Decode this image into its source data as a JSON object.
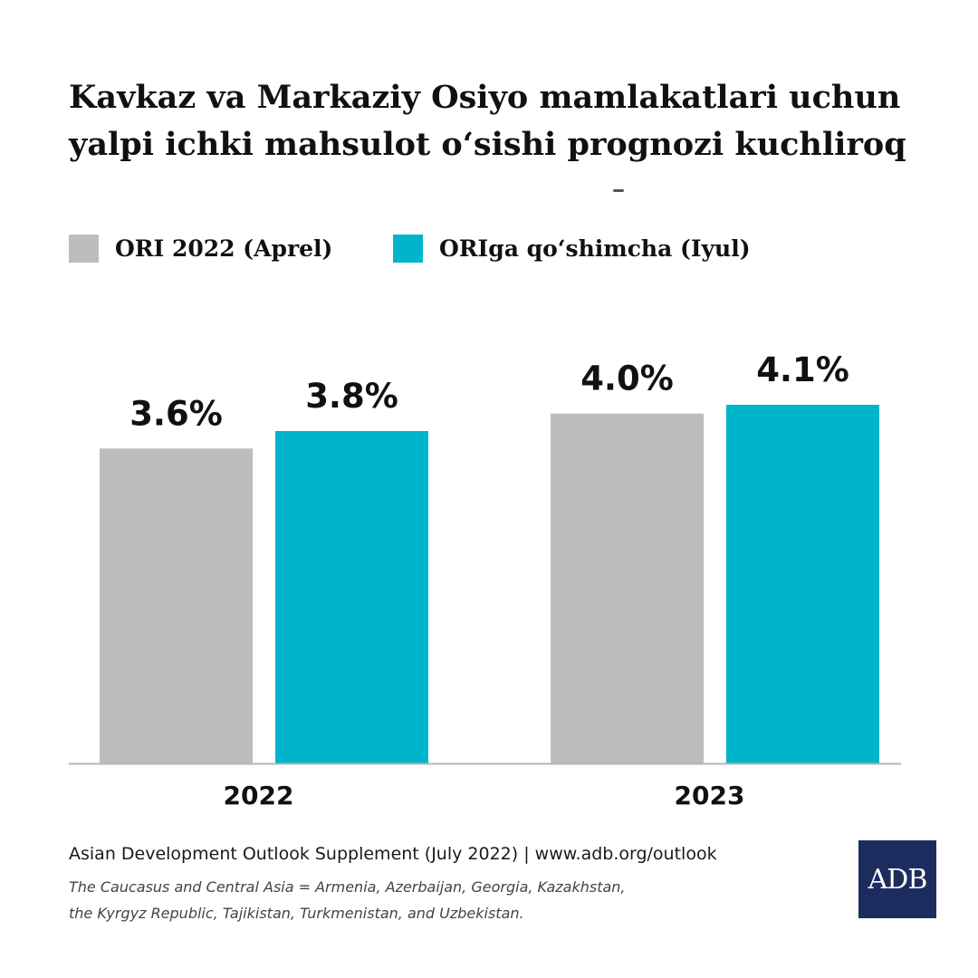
{
  "title_lines": [
    "Kavkaz va Markaziy Osiyo mamlakatlari uchun",
    "yalpi ichki mahsulot o‘sishi prognozi kuchliroq"
  ],
  "legend": [
    {
      "label": "ORI 2022 (Aprel)",
      "color": "#bcbdbf"
    },
    {
      "label": "ORIga qo‘shimcha (Iyul)",
      "color": "#00b5cb"
    }
  ],
  "chart_data": {
    "type": "bar",
    "title": "Kavkaz va Markaziy Osiyo mamlakatlari uchun yalpi ichki mahsulot o‘sishi prognozi kuchliroq",
    "categories": [
      "2022",
      "2023"
    ],
    "series": [
      {
        "name": "ORI 2022 (Aprel)",
        "values": [
          3.6,
          4.0
        ],
        "labels": [
          "3.6%",
          "4.0%"
        ],
        "color": "#bcbdbf"
      },
      {
        "name": "ORIga qo‘shimcha (Iyul)",
        "values": [
          3.8,
          4.1
        ],
        "labels": [
          "3.8%",
          "4.1%"
        ],
        "color": "#00b5cb"
      }
    ],
    "xlabel": "",
    "ylabel": "",
    "ylim": [
      0,
      4.1
    ],
    "grid": false,
    "legend_position": "top-left",
    "data_labels": true
  },
  "footer": {
    "source": "Asian Development Outlook Supplement (July 2022) | www.adb.org/outlook",
    "note_lines": [
      "The Caucasus and Central Asia = Armenia, Azerbaijan, Georgia, Kazakhstan,",
      "the Kyrgyz Republic, Tajikistan, Turkmenistan, and Uzbekistan."
    ]
  },
  "logo": {
    "text": "ADB",
    "color": "#1d2c5e"
  }
}
